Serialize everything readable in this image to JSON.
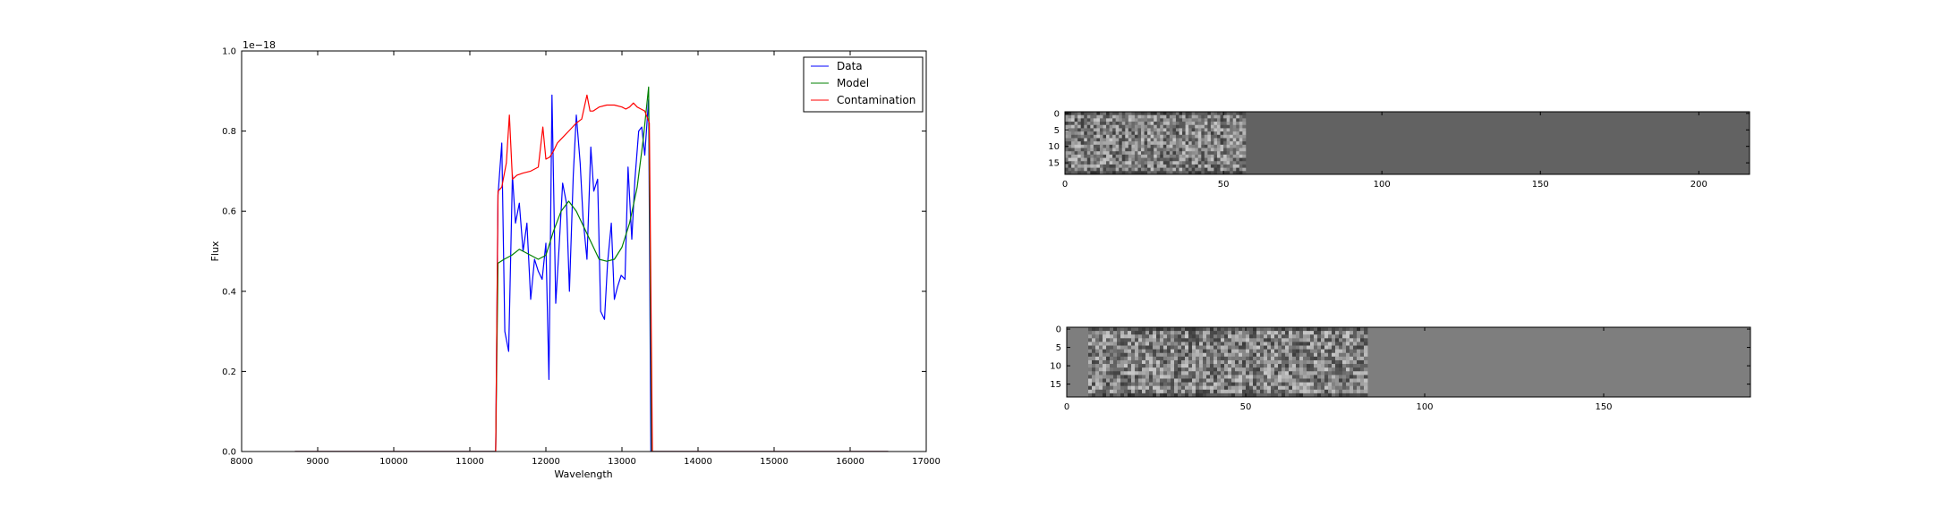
{
  "chart_data": [
    {
      "type": "line",
      "title": "",
      "xlabel": "Wavelength",
      "ylabel": "Flux",
      "offset_text": "1e−18",
      "xlim": [
        8000,
        17000
      ],
      "ylim": [
        0.0,
        1.0
      ],
      "xticks": [
        8000,
        9000,
        10000,
        11000,
        12000,
        13000,
        14000,
        15000,
        16000,
        17000
      ],
      "yticks": [
        "0.0",
        "0.2",
        "0.4",
        "0.6",
        "0.8",
        "1.0"
      ],
      "yticks_values": [
        0.0,
        0.2,
        0.4,
        0.6,
        0.8,
        1.0
      ],
      "grid": false,
      "legend": "upper right",
      "series": [
        {
          "name": "Data",
          "color": "#0000ff",
          "x": [
            8700,
            11340,
            11370,
            11420,
            11460,
            11510,
            11560,
            11600,
            11650,
            11700,
            11750,
            11800,
            11850,
            11900,
            11950,
            12000,
            12040,
            12080,
            12130,
            12170,
            12220,
            12270,
            12310,
            12360,
            12400,
            12450,
            12490,
            12540,
            12590,
            12630,
            12680,
            12720,
            12770,
            12810,
            12860,
            12900,
            12940,
            12990,
            13040,
            13080,
            13130,
            13170,
            13220,
            13260,
            13300,
            13350,
            13380,
            16500
          ],
          "y": [
            0.0,
            0.0,
            0.64,
            0.77,
            0.3,
            0.25,
            0.69,
            0.57,
            0.62,
            0.5,
            0.57,
            0.38,
            0.48,
            0.45,
            0.43,
            0.52,
            0.18,
            0.89,
            0.37,
            0.5,
            0.67,
            0.62,
            0.4,
            0.69,
            0.84,
            0.72,
            0.58,
            0.48,
            0.76,
            0.65,
            0.68,
            0.35,
            0.33,
            0.47,
            0.57,
            0.38,
            0.41,
            0.44,
            0.43,
            0.71,
            0.53,
            0.68,
            0.8,
            0.81,
            0.74,
            0.88,
            0.0,
            0.0
          ]
        },
        {
          "name": "Model",
          "color": "#008000",
          "x": [
            8700,
            11340,
            11370,
            11450,
            11550,
            11650,
            11700,
            11800,
            11900,
            12000,
            12100,
            12200,
            12300,
            12400,
            12500,
            12600,
            12700,
            12800,
            12900,
            13000,
            13100,
            13200,
            13280,
            13350,
            13390,
            16500
          ],
          "y": [
            0.0,
            0.0,
            0.47,
            0.48,
            0.49,
            0.505,
            0.5,
            0.49,
            0.48,
            0.49,
            0.55,
            0.6,
            0.625,
            0.6,
            0.56,
            0.52,
            0.48,
            0.475,
            0.48,
            0.51,
            0.57,
            0.66,
            0.78,
            0.91,
            0.0,
            0.0
          ]
        },
        {
          "name": "Contamination",
          "color": "#ff0000",
          "x": [
            8700,
            11340,
            11370,
            11420,
            11480,
            11520,
            11560,
            11620,
            11700,
            11800,
            11900,
            11960,
            12000,
            12050,
            12100,
            12150,
            12200,
            12300,
            12400,
            12470,
            12540,
            12580,
            12620,
            12700,
            12800,
            12900,
            13000,
            13050,
            13100,
            13150,
            13200,
            13250,
            13300,
            13360,
            13400,
            16500
          ],
          "y": [
            0.0,
            0.0,
            0.65,
            0.66,
            0.72,
            0.84,
            0.68,
            0.69,
            0.695,
            0.7,
            0.71,
            0.81,
            0.73,
            0.735,
            0.75,
            0.77,
            0.78,
            0.8,
            0.82,
            0.83,
            0.89,
            0.85,
            0.85,
            0.86,
            0.865,
            0.865,
            0.86,
            0.855,
            0.86,
            0.87,
            0.86,
            0.855,
            0.85,
            0.82,
            0.0,
            0.0
          ]
        }
      ]
    },
    {
      "type": "heatmap",
      "title": "",
      "xlim": [
        0,
        216
      ],
      "ylim": [
        19,
        0
      ],
      "xticks": [
        0,
        50,
        100,
        150,
        200
      ],
      "yticks": [
        0,
        5,
        10,
        15
      ],
      "colormap": "gray",
      "textured_columns": [
        0,
        57
      ],
      "flat_value_color": "#626262"
    },
    {
      "type": "heatmap",
      "title": "",
      "xlim": [
        0,
        191
      ],
      "ylim": [
        19,
        0
      ],
      "xticks": [
        0,
        50,
        100,
        150
      ],
      "yticks": [
        0,
        5,
        10,
        15
      ],
      "colormap": "gray",
      "textured_columns": [
        6,
        84
      ],
      "flat_value_color": "#7e7e7e"
    }
  ]
}
